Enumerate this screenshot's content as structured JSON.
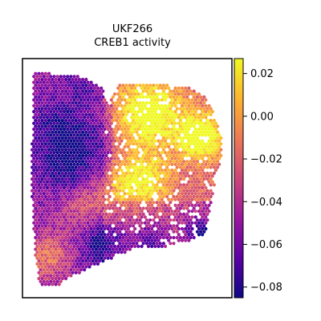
{
  "chart_data": {
    "type": "heatmap",
    "title_lines": [
      "UKF266",
      "CREB1 activity"
    ],
    "xlabel": "",
    "ylabel": "",
    "grid": false,
    "colormap": {
      "name": "plasma",
      "stops": [
        "#0d0887",
        "#5c01a6",
        "#9c179e",
        "#cc4778",
        "#ed7953",
        "#fdb42f",
        "#f0f921"
      ],
      "vmin": -0.085,
      "vmax": 0.027
    },
    "colorbar": {
      "ticks": [
        0.02,
        0.0,
        -0.02,
        -0.04,
        -0.06,
        -0.08
      ],
      "tick_labels": [
        "0.02",
        "0.00",
        "−0.02",
        "−0.04",
        "−0.06",
        "−0.08"
      ]
    }
  }
}
